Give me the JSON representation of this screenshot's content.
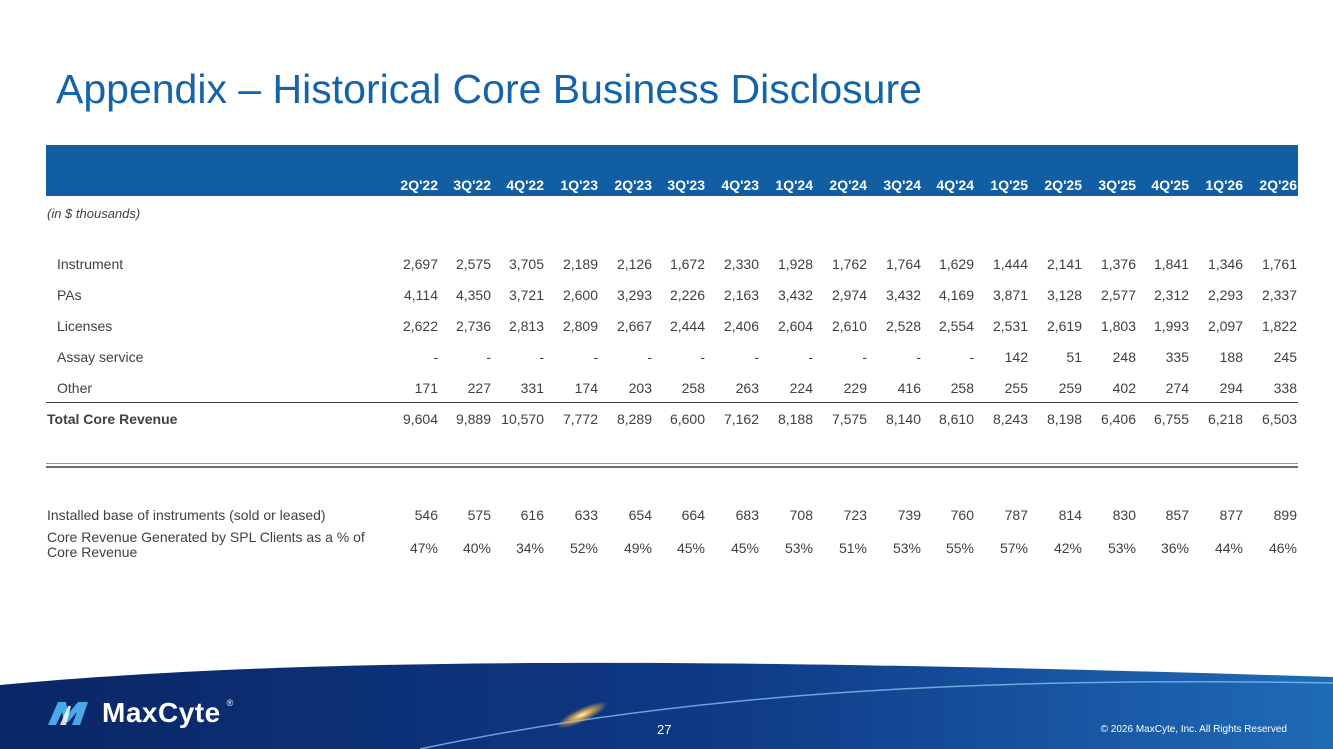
{
  "title": "Appendix – Historical Core Business Disclosure",
  "units_note": "(in $ thousands)",
  "quarters": [
    "2Q'22",
    "3Q'22",
    "4Q'22",
    "1Q'23",
    "2Q'23",
    "3Q'23",
    "4Q'23",
    "1Q'24",
    "2Q'24",
    "3Q'24",
    "4Q'24",
    "1Q'25",
    "2Q'25",
    "3Q'25",
    "4Q'25",
    "1Q'26",
    "2Q'26"
  ],
  "rows": [
    {
      "label": "Instrument",
      "values": [
        "2,697",
        "2,575",
        "3,705",
        "2,189",
        "2,126",
        "1,672",
        "2,330",
        "1,928",
        "1,762",
        "1,764",
        "1,629",
        "1,444",
        "2,141",
        "1,376",
        "1,841",
        "1,346",
        "1,761"
      ]
    },
    {
      "label": "PAs",
      "values": [
        "4,114",
        "4,350",
        "3,721",
        "2,600",
        "3,293",
        "2,226",
        "2,163",
        "3,432",
        "2,974",
        "3,432",
        "4,169",
        "3,871",
        "3,128",
        "2,577",
        "2,312",
        "2,293",
        "2,337"
      ]
    },
    {
      "label": "Licenses",
      "values": [
        "2,622",
        "2,736",
        "2,813",
        "2,809",
        "2,667",
        "2,444",
        "2,406",
        "2,604",
        "2,610",
        "2,528",
        "2,554",
        "2,531",
        "2,619",
        "1,803",
        "1,993",
        "2,097",
        "1,822"
      ]
    },
    {
      "label": "Assay service",
      "values": [
        "-",
        "-",
        "-",
        "-",
        "-",
        "-",
        "-",
        "-",
        "-",
        "-",
        "-",
        "142",
        "51",
        "248",
        "335",
        "188",
        "245"
      ]
    },
    {
      "label": "Other",
      "values": [
        "171",
        "227",
        "331",
        "174",
        "203",
        "258",
        "263",
        "224",
        "229",
        "416",
        "258",
        "255",
        "259",
        "402",
        "274",
        "294",
        "338"
      ]
    }
  ],
  "total": {
    "label": "Total Core Revenue",
    "values": [
      "9,604",
      "9,889",
      "10,570",
      "7,772",
      "8,289",
      "6,600",
      "7,162",
      "8,188",
      "7,575",
      "8,140",
      "8,610",
      "8,243",
      "8,198",
      "6,406",
      "6,755",
      "6,218",
      "6,503"
    ]
  },
  "kpis": [
    {
      "label": "Installed base of instruments (sold or leased)",
      "values": [
        "546",
        "575",
        "616",
        "633",
        "654",
        "664",
        "683",
        "708",
        "723",
        "739",
        "760",
        "787",
        "814",
        "830",
        "857",
        "877",
        "899"
      ]
    },
    {
      "label": "Core Revenue Generated by SPL Clients as a % of Core Revenue",
      "values": [
        "47%",
        "40%",
        "34%",
        "52%",
        "49%",
        "45%",
        "45%",
        "53%",
        "51%",
        "53%",
        "55%",
        "57%",
        "42%",
        "53%",
        "36%",
        "44%",
        "46%"
      ]
    }
  ],
  "footer": {
    "logo_text": "MaxCyte",
    "logo_mark": "®",
    "page_number": "27",
    "copyright": "© 2026 MaxCyte, Inc. All Rights Reserved"
  },
  "colors": {
    "title": "#1563a8",
    "header_bg": "#125ea3",
    "footer_dark": "#0b2a66",
    "footer_mid": "#1c5aa8"
  }
}
